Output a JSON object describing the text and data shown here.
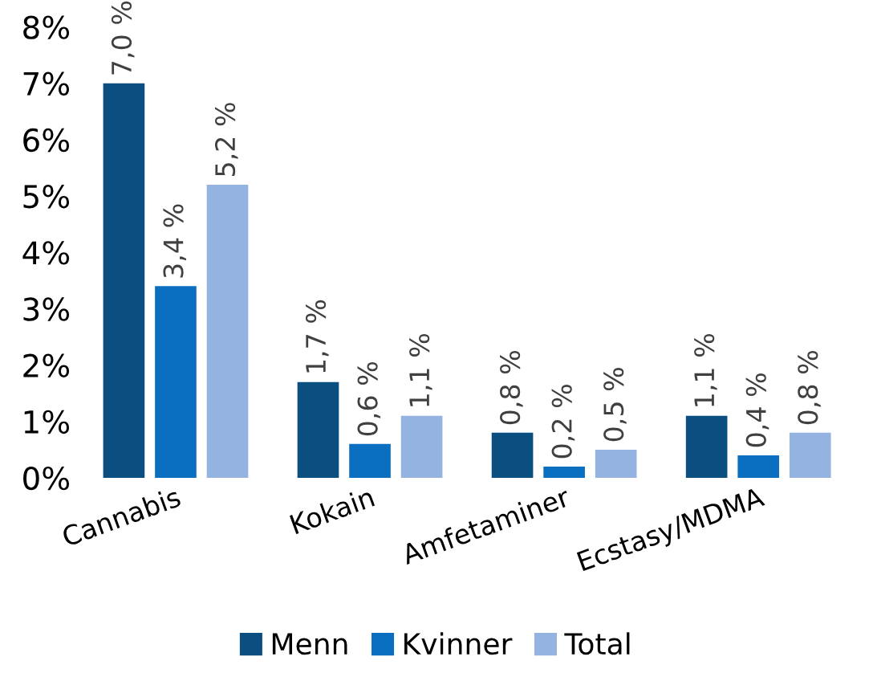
{
  "chart_data": {
    "type": "bar",
    "categories": [
      "Cannabis",
      "Kokain",
      "Amfetaminer",
      "Ecstasy/MDMA"
    ],
    "series": [
      {
        "name": "Menn",
        "color": "#0b4f80",
        "values": [
          7.0,
          1.7,
          0.8,
          1.1
        ],
        "value_labels": [
          "7,0 %",
          "1,7 %",
          "0,8 %",
          "1,1 %"
        ]
      },
      {
        "name": "Kvinner",
        "color": "#0a6fc0",
        "values": [
          3.4,
          0.6,
          0.2,
          0.4
        ],
        "value_labels": [
          "3,4 %",
          "0,6 %",
          "0,2 %",
          "0,4 %"
        ]
      },
      {
        "name": "Total",
        "color": "#94b3e0",
        "values": [
          5.2,
          1.1,
          0.5,
          0.8
        ],
        "value_labels": [
          "5,2 %",
          "1,1 %",
          "0,5 %",
          "0,8 %"
        ]
      }
    ],
    "ylim": [
      0,
      8
    ],
    "yticks": [
      {
        "value": 0,
        "label": "0%"
      },
      {
        "value": 1,
        "label": "1%"
      },
      {
        "value": 2,
        "label": "2%"
      },
      {
        "value": 3,
        "label": "3%"
      },
      {
        "value": 4,
        "label": "4%"
      },
      {
        "value": 5,
        "label": "5%"
      },
      {
        "value": 6,
        "label": "6%"
      },
      {
        "value": 7,
        "label": "7%"
      },
      {
        "value": 8,
        "label": "8%"
      }
    ],
    "grid": false,
    "legend": "bottom"
  }
}
